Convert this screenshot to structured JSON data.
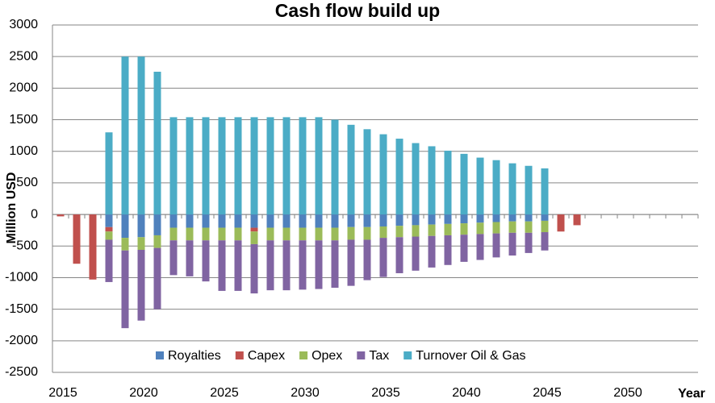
{
  "chart_data": {
    "type": "bar",
    "stacked": true,
    "title": "Cash flow build up",
    "y_label": "Million USD",
    "x_label": "Year",
    "categories": [
      2015,
      null,
      null,
      null,
      null,
      2020,
      null,
      null,
      null,
      null,
      2025,
      null,
      null,
      null,
      null,
      2030,
      null,
      null,
      null,
      null,
      2035,
      null,
      null,
      null,
      null,
      2040,
      null,
      null,
      null,
      null,
      2045,
      null,
      null,
      null,
      null,
      2050,
      null,
      null,
      null,
      null
    ],
    "ylim": [
      -2500,
      3000
    ],
    "yticks": [
      -2500,
      -2000,
      -1500,
      -1000,
      -500,
      0,
      500,
      1000,
      1500,
      2000,
      2500,
      3000
    ],
    "grid": true,
    "legend": "bottom",
    "series": [
      {
        "name": "Royalties",
        "color": "#4f81bd",
        "values": [
          null,
          null,
          null,
          -200,
          -370,
          -360,
          -330,
          -210,
          -210,
          -210,
          -210,
          -210,
          -210,
          -210,
          -210,
          -210,
          -210,
          -210,
          -200,
          -200,
          -190,
          -180,
          -170,
          -160,
          -150,
          -140,
          -130,
          -120,
          -110,
          -110,
          -100,
          null,
          null,
          null,
          null,
          null,
          null,
          null,
          null,
          null
        ]
      },
      {
        "name": "Capex",
        "color": "#c0504d",
        "values": [
          -30,
          -780,
          -1030,
          -70,
          null,
          null,
          null,
          null,
          null,
          null,
          null,
          null,
          -60,
          null,
          null,
          null,
          null,
          null,
          null,
          null,
          null,
          null,
          null,
          null,
          null,
          null,
          null,
          null,
          null,
          null,
          null,
          -270,
          -170,
          null,
          null,
          null,
          null,
          null,
          null,
          null
        ]
      },
      {
        "name": "Opex",
        "color": "#9bbb59",
        "values": [
          null,
          null,
          null,
          -130,
          -200,
          -200,
          -200,
          -200,
          -200,
          -200,
          -200,
          -200,
          -200,
          -200,
          -200,
          -200,
          -200,
          -200,
          -200,
          -200,
          -180,
          -180,
          -180,
          -180,
          -180,
          -180,
          -180,
          -180,
          -180,
          -180,
          -180,
          null,
          null,
          null,
          null,
          null,
          null,
          null,
          null,
          null
        ]
      },
      {
        "name": "Tax",
        "color": "#8064a2",
        "values": [
          null,
          null,
          null,
          -670,
          -1230,
          -1120,
          -970,
          -550,
          -570,
          -650,
          -800,
          -800,
          -780,
          -790,
          -790,
          -780,
          -770,
          -750,
          -730,
          -640,
          -620,
          -570,
          -540,
          -500,
          -470,
          -430,
          -410,
          -380,
          -360,
          -320,
          -290,
          null,
          null,
          null,
          null,
          null,
          null,
          null,
          null,
          null
        ]
      },
      {
        "name": "Turnover Oil & Gas",
        "color": "#4bacc6",
        "values": [
          null,
          null,
          null,
          1300,
          2500,
          2500,
          2260,
          1540,
          1540,
          1540,
          1540,
          1540,
          1540,
          1540,
          1540,
          1540,
          1540,
          1500,
          1420,
          1350,
          1270,
          1200,
          1130,
          1080,
          1010,
          960,
          900,
          860,
          810,
          770,
          730,
          null,
          null,
          null,
          null,
          null,
          null,
          null,
          null,
          null
        ]
      }
    ]
  }
}
